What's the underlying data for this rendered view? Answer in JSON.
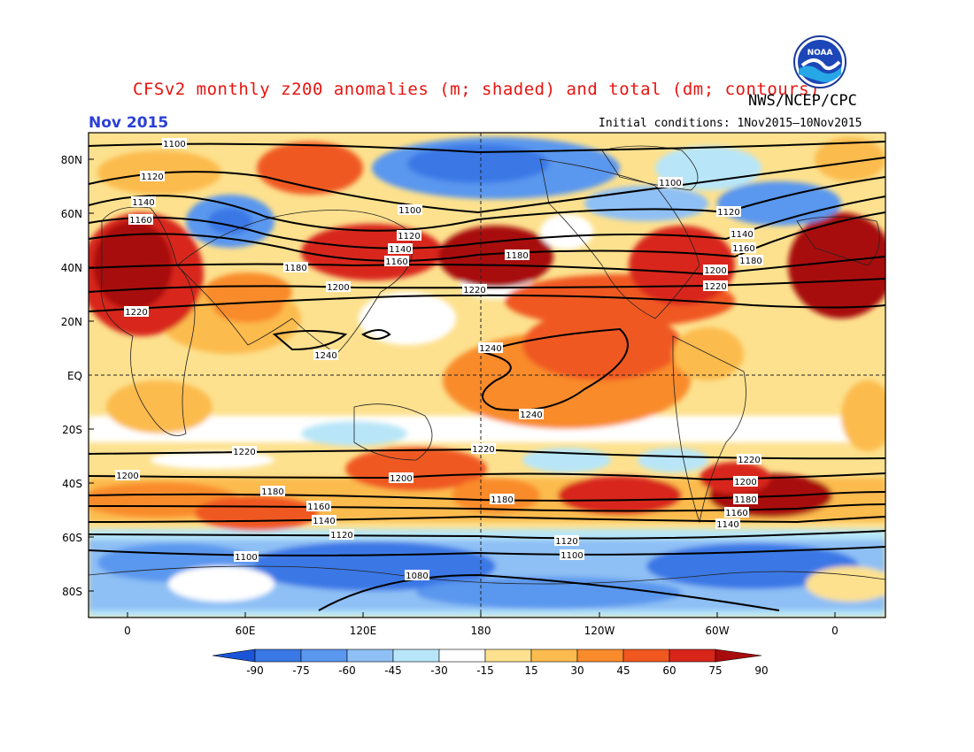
{
  "header": {
    "title": "CFSv2 monthly z200 anomalies (m; shaded) and total (dm; contours)",
    "agency": "NWS/NCEP/CPC",
    "logo_text": "NOAA",
    "month": "Nov 2015",
    "initial_conditions": "Initial conditions: 1Nov2015—10Nov2015"
  },
  "axes": {
    "lat_labels": [
      "80N",
      "60N",
      "40N",
      "20N",
      "EQ",
      "20S",
      "40S",
      "60S",
      "80S"
    ],
    "lon_labels": [
      "0",
      "60E",
      "120E",
      "180",
      "120W",
      "60W",
      "0"
    ]
  },
  "contour_labels": [
    "1100",
    "1120",
    "1140",
    "1160",
    "1180",
    "1200",
    "1220",
    "1240",
    "1080"
  ],
  "colorbar": {
    "labels": [
      "-90",
      "-75",
      "-60",
      "-45",
      "-30",
      "-15",
      "15",
      "30",
      "45",
      "60",
      "75",
      "90"
    ],
    "colors": [
      "#1a55d8",
      "#3a78e6",
      "#5a97ee",
      "#8ec0f5",
      "#b8e6f8",
      "#ffffff",
      "#fde18e",
      "#fcbb4e",
      "#f98b2c",
      "#f05820",
      "#d8251a",
      "#a80c0c"
    ]
  },
  "chart_data": {
    "type": "heatmap",
    "title": "CFSv2 monthly z200 anomalies (m; shaded) and total (dm; contours)",
    "shading_levels_m": [
      -90,
      -75,
      -60,
      -45,
      -30,
      -15,
      15,
      30,
      45,
      60,
      75,
      90
    ],
    "contour_values_dm": [
      1080,
      1100,
      1120,
      1140,
      1160,
      1180,
      1200,
      1220,
      1240
    ],
    "lat_range": [
      -90,
      90
    ],
    "lon_ticks": [
      "0",
      "60E",
      "120E",
      "180",
      "120W",
      "60W",
      "0"
    ]
  }
}
